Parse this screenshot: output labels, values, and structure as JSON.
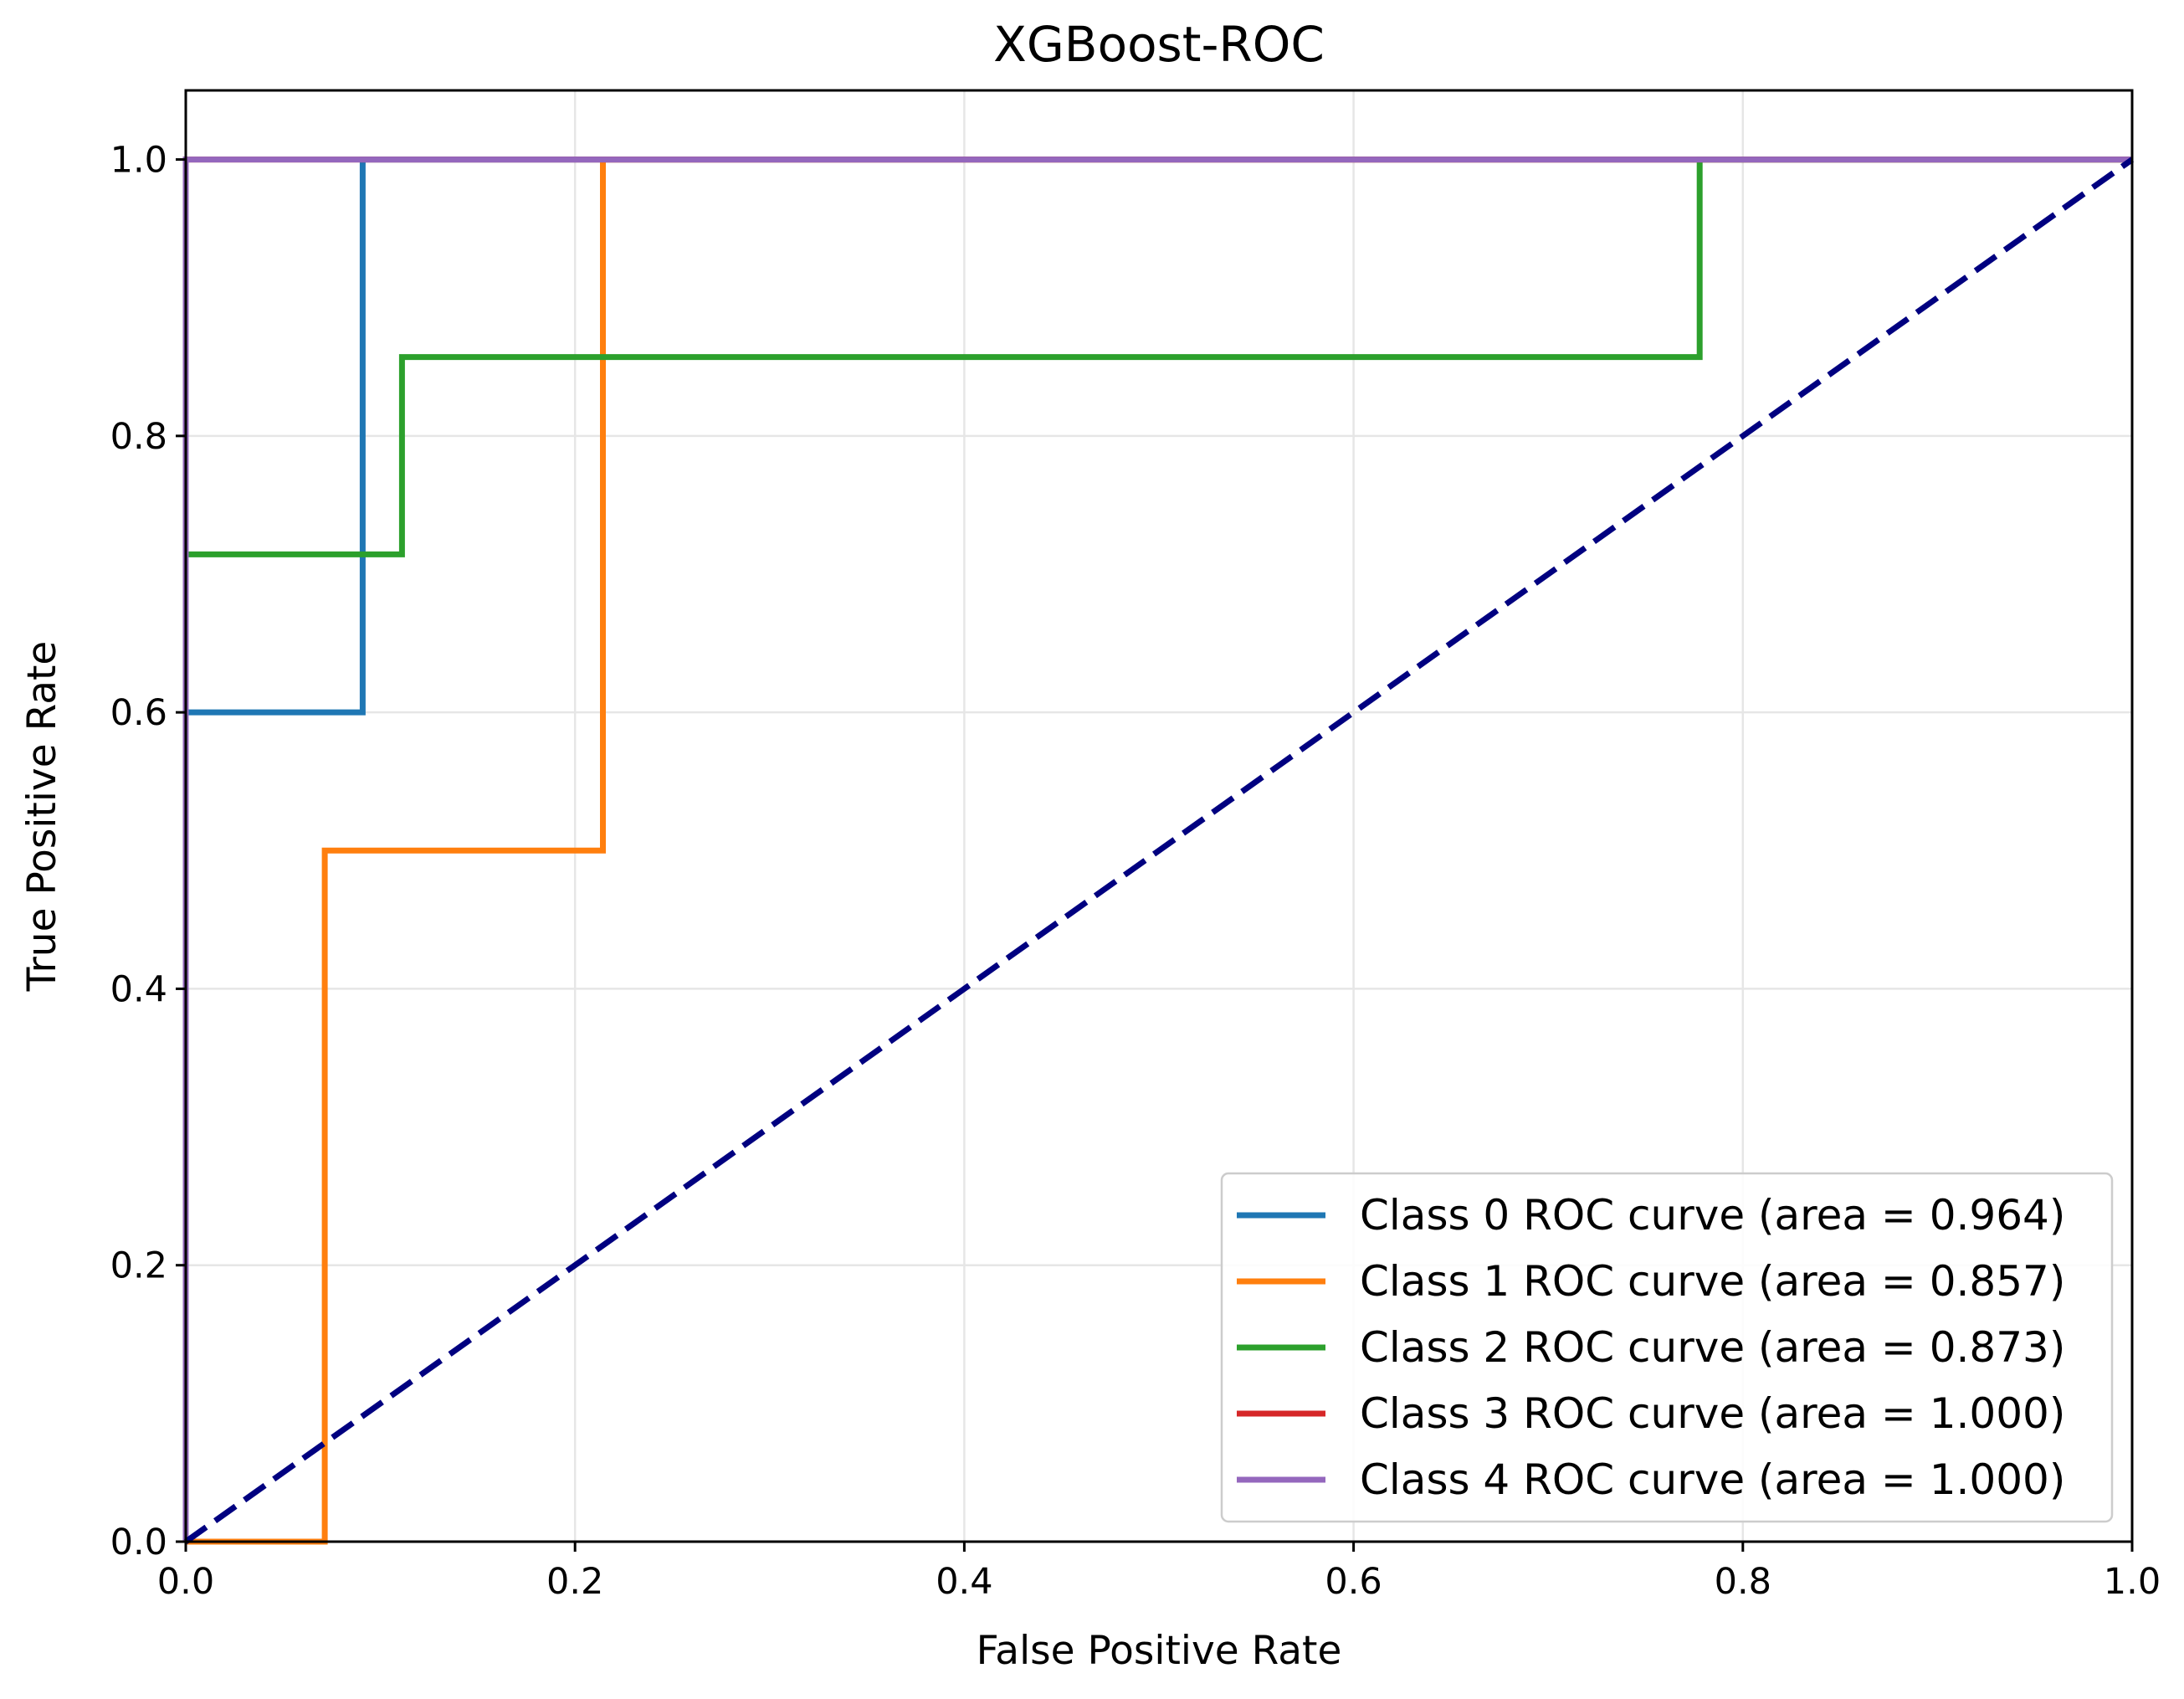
{
  "chart_data": {
    "type": "line",
    "title": "XGBoost-ROC",
    "xlabel": "False Positive Rate",
    "ylabel": "True Positive Rate",
    "xlim": [
      0.0,
      1.0
    ],
    "ylim": [
      0.0,
      1.05
    ],
    "xticks": [
      0.0,
      0.2,
      0.4,
      0.6,
      0.8,
      1.0
    ],
    "yticks": [
      0.0,
      0.2,
      0.4,
      0.6,
      0.8,
      1.0
    ],
    "xtick_labels": [
      "0.0",
      "0.2",
      "0.4",
      "0.6",
      "0.8",
      "1.0"
    ],
    "ytick_labels": [
      "0.0",
      "0.2",
      "0.4",
      "0.6",
      "0.8",
      "1.0"
    ],
    "grid": true,
    "legend_position": "bottom-right",
    "series": [
      {
        "name": "Class 0 ROC curve (area = 0.964)",
        "color": "#1f77b4",
        "x": [
          0.0,
          0.0,
          0.0909,
          0.0909,
          1.0
        ],
        "y": [
          0.0,
          0.6,
          0.6,
          1.0,
          1.0
        ]
      },
      {
        "name": "Class 1 ROC curve (area = 0.857)",
        "color": "#ff7f0e",
        "x": [
          0.0,
          0.0714,
          0.0714,
          0.2143,
          0.2143,
          1.0
        ],
        "y": [
          0.0,
          0.0,
          0.5,
          0.5,
          1.0,
          1.0
        ]
      },
      {
        "name": "Class 2 ROC curve (area = 0.873)",
        "color": "#2ca02c",
        "x": [
          0.0,
          0.0,
          0.1111,
          0.1111,
          0.7778,
          0.7778,
          1.0
        ],
        "y": [
          0.0,
          0.7143,
          0.7143,
          0.8571,
          0.8571,
          1.0,
          1.0
        ]
      },
      {
        "name": "Class 3 ROC curve (area = 1.000)",
        "color": "#d62728",
        "x": [
          0.0,
          0.0,
          1.0
        ],
        "y": [
          0.0,
          1.0,
          1.0
        ]
      },
      {
        "name": "Class 4 ROC curve (area = 1.000)",
        "color": "#9467bd",
        "x": [
          0.0,
          0.0,
          1.0
        ],
        "y": [
          0.0,
          1.0,
          1.0
        ]
      }
    ],
    "reference_line": {
      "name": "chance diagonal",
      "color": "#000080",
      "style": "dashed",
      "x": [
        0.0,
        1.0
      ],
      "y": [
        0.0,
        1.0
      ]
    }
  }
}
